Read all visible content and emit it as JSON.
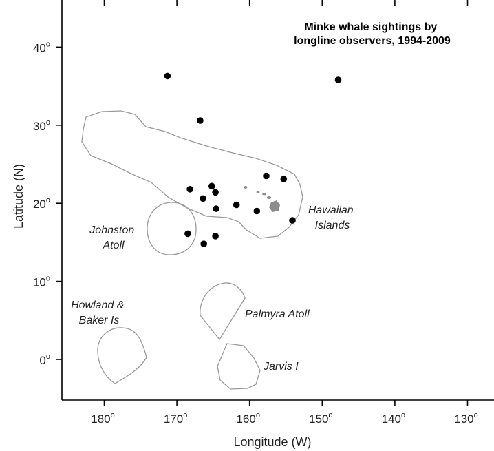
{
  "title_lines": [
    "Minke whale sightings by",
    "longline observers, 1994-2009"
  ],
  "x_axis_title": "Longitude (W)",
  "y_axis_title": "Latitude (N)",
  "degree_symbol": "o",
  "x_ticks": [
    {
      "value": 180,
      "label": "180"
    },
    {
      "value": 170,
      "label": "170"
    },
    {
      "value": 160,
      "label": "160"
    },
    {
      "value": 150,
      "label": "150"
    },
    {
      "value": 140,
      "label": "140"
    },
    {
      "value": 130,
      "label": "130"
    }
  ],
  "y_ticks": [
    {
      "value": 0,
      "label": "0"
    },
    {
      "value": 10,
      "label": "10"
    },
    {
      "value": 20,
      "label": "20"
    },
    {
      "value": 30,
      "label": "30"
    },
    {
      "value": 40,
      "label": "40"
    }
  ],
  "x_range_west": [
    185,
    125
  ],
  "y_range_north": [
    -5,
    45
  ],
  "place_labels": {
    "johnston": [
      "Johnston",
      "Atoll"
    ],
    "hawaiian": [
      "Hawaiian",
      "Islands"
    ],
    "howland": [
      "Howland &",
      "Baker Is"
    ],
    "palmyra": "Palmyra Atoll",
    "jarvis": "Jarvis I"
  },
  "sightings": [
    {
      "lon_w": 171.3,
      "lat_n": 36.3
    },
    {
      "lon_w": 147.8,
      "lat_n": 35.8
    },
    {
      "lon_w": 166.8,
      "lat_n": 30.6
    },
    {
      "lon_w": 157.7,
      "lat_n": 23.5
    },
    {
      "lon_w": 155.3,
      "lat_n": 23.1
    },
    {
      "lon_w": 165.2,
      "lat_n": 22.2
    },
    {
      "lon_w": 168.2,
      "lat_n": 21.8
    },
    {
      "lon_w": 164.7,
      "lat_n": 21.4
    },
    {
      "lon_w": 166.4,
      "lat_n": 20.6
    },
    {
      "lon_w": 161.8,
      "lat_n": 19.8
    },
    {
      "lon_w": 164.6,
      "lat_n": 19.3
    },
    {
      "lon_w": 159.0,
      "lat_n": 19.0
    },
    {
      "lon_w": 154.1,
      "lat_n": 17.8
    },
    {
      "lon_w": 168.5,
      "lat_n": 16.1
    },
    {
      "lon_w": 164.7,
      "lat_n": 15.8
    },
    {
      "lon_w": 166.3,
      "lat_n": 14.8
    }
  ]
}
